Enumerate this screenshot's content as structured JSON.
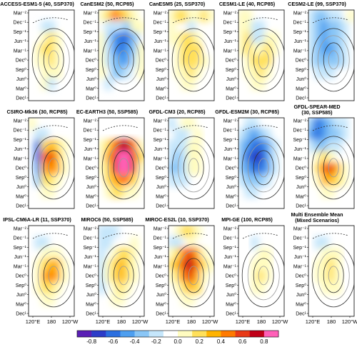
{
  "figure": {
    "panels": [
      {
        "title": "ACCESS-ESM1-5 (40, SSP370)",
        "pattern": [
          [
            0,
            0,
            0,
            0,
            0,
            0,
            0
          ],
          [
            0,
            0,
            -1,
            -1,
            0,
            0,
            0
          ],
          [
            0,
            0,
            1,
            2,
            1,
            0,
            0
          ],
          [
            0,
            1,
            2,
            2,
            1,
            0,
            0
          ],
          [
            0,
            1,
            1,
            2,
            1,
            0,
            0
          ],
          [
            0,
            0,
            1,
            1,
            1,
            0,
            0
          ],
          [
            0,
            0,
            1,
            -1,
            0,
            0,
            0
          ],
          [
            0,
            0,
            0,
            0,
            0,
            0,
            0
          ]
        ]
      },
      {
        "title": "CanESM2 (50, RCP85)",
        "pattern": [
          [
            1,
            2,
            4,
            3,
            2,
            1,
            0
          ],
          [
            0,
            -1,
            -1,
            -1,
            -2,
            1,
            1
          ],
          [
            1,
            -1,
            -3,
            -4,
            -4,
            -2,
            0
          ],
          [
            1,
            -1,
            -3,
            -4,
            -3,
            -2,
            1
          ],
          [
            1,
            -1,
            -2,
            -3,
            -3,
            -1,
            1
          ],
          [
            1,
            0,
            -2,
            -2,
            -1,
            0,
            1
          ],
          [
            0,
            -1,
            0,
            0,
            0,
            0,
            0
          ],
          [
            0,
            0,
            0,
            0,
            0,
            0,
            0
          ]
        ]
      },
      {
        "title": "CanESM5 (25, SSP370)",
        "pattern": [
          [
            1,
            2,
            2,
            1,
            1,
            2,
            1
          ],
          [
            1,
            0,
            0,
            -1,
            0,
            0,
            0
          ],
          [
            1,
            1,
            2,
            2,
            1,
            0,
            0
          ],
          [
            0,
            1,
            2,
            2,
            2,
            0,
            0
          ],
          [
            0,
            1,
            2,
            2,
            2,
            1,
            0
          ],
          [
            0,
            1,
            1,
            2,
            1,
            0,
            0
          ],
          [
            0,
            0,
            1,
            1,
            0,
            0,
            0
          ],
          [
            0,
            0,
            0,
            0,
            0,
            0,
            0
          ]
        ]
      },
      {
        "title": "CESM1-LE (40, RCP85)",
        "pattern": [
          [
            1,
            1,
            0,
            0,
            0,
            0,
            0
          ],
          [
            1,
            1,
            -1,
            -1,
            0,
            0,
            0
          ],
          [
            1,
            2,
            -1,
            -1,
            1,
            1,
            0
          ],
          [
            1,
            2,
            1,
            1,
            2,
            1,
            0
          ],
          [
            0,
            1,
            2,
            2,
            2,
            0,
            0
          ],
          [
            0,
            1,
            1,
            2,
            1,
            0,
            0
          ],
          [
            0,
            0,
            1,
            1,
            0,
            0,
            0
          ],
          [
            0,
            0,
            0,
            0,
            0,
            0,
            0
          ]
        ]
      },
      {
        "title": "CESM2-LE (99, SSP370)",
        "pattern": [
          [
            -1,
            -2,
            -2,
            -1,
            -1,
            0,
            1
          ],
          [
            -1,
            -2,
            -3,
            -2,
            -2,
            -1,
            0
          ],
          [
            -1,
            -2,
            -3,
            -2,
            -2,
            -1,
            0
          ],
          [
            -1,
            -2,
            -3,
            -3,
            -2,
            -1,
            0
          ],
          [
            -1,
            -2,
            -2,
            -2,
            -2,
            -1,
            0
          ],
          [
            0,
            -1,
            -1,
            -1,
            0,
            0,
            0
          ],
          [
            0,
            0,
            0,
            0,
            0,
            0,
            0
          ],
          [
            0,
            0,
            0,
            0,
            0,
            0,
            0
          ]
        ]
      },
      {
        "title": "CSIRO-Mk36 (30, RCP85)",
        "pattern": [
          [
            1,
            0,
            0,
            0,
            0,
            0,
            0
          ],
          [
            0,
            -1,
            -1,
            0,
            0,
            0,
            0
          ],
          [
            0,
            -4,
            2,
            3,
            2,
            1,
            0
          ],
          [
            0,
            -4,
            4,
            5,
            3,
            1,
            0
          ],
          [
            0,
            -3,
            3,
            4,
            3,
            1,
            0
          ],
          [
            0,
            -2,
            2,
            2,
            1,
            0,
            0
          ],
          [
            0,
            0,
            1,
            1,
            0,
            0,
            0
          ],
          [
            0,
            0,
            0,
            0,
            0,
            0,
            0
          ]
        ]
      },
      {
        "title": "EC-EARTH3 (50, SSP585)",
        "pattern": [
          [
            0,
            0,
            0,
            0,
            0,
            0,
            0
          ],
          [
            0,
            0,
            0,
            0,
            0,
            0,
            0
          ],
          [
            1,
            2,
            4,
            6,
            6,
            4,
            1
          ],
          [
            1,
            3,
            5,
            7,
            7,
            5,
            2
          ],
          [
            1,
            2,
            5,
            7,
            7,
            5,
            1
          ],
          [
            0,
            2,
            3,
            4,
            4,
            2,
            0
          ],
          [
            0,
            1,
            2,
            2,
            1,
            1,
            0
          ],
          [
            0,
            0,
            0,
            0,
            0,
            0,
            0
          ]
        ]
      },
      {
        "title": "GFDL-CM3 (20, RCP85)",
        "pattern": [
          [
            -1,
            0,
            1,
            1,
            0,
            0,
            0
          ],
          [
            0,
            -1,
            -1,
            0,
            1,
            0,
            0
          ],
          [
            -1,
            -1,
            -1,
            1,
            1,
            0,
            0
          ],
          [
            -1,
            -2,
            -1,
            1,
            1,
            0,
            0
          ],
          [
            -2,
            -2,
            -1,
            1,
            1,
            0,
            0
          ],
          [
            -1,
            -1,
            -1,
            0,
            0,
            0,
            0
          ],
          [
            0,
            0,
            0,
            0,
            0,
            0,
            0
          ],
          [
            0,
            0,
            0,
            0,
            0,
            0,
            0
          ]
        ]
      },
      {
        "title": "GFDL-ESM2M (30, RCP85)",
        "pattern": [
          [
            0,
            -1,
            -1,
            0,
            0,
            0,
            0
          ],
          [
            -1,
            -2,
            -3,
            -2,
            -1,
            0,
            0
          ],
          [
            -2,
            -3,
            -4,
            -4,
            -3,
            -1,
            0
          ],
          [
            -2,
            -4,
            -5,
            -5,
            -3,
            -1,
            0
          ],
          [
            -2,
            -3,
            -4,
            -4,
            -3,
            -1,
            0
          ],
          [
            -1,
            -2,
            -2,
            -2,
            -1,
            0,
            0
          ],
          [
            0,
            -1,
            -1,
            0,
            0,
            0,
            0
          ],
          [
            0,
            0,
            0,
            0,
            0,
            0,
            0
          ]
        ]
      },
      {
        "title": "GFDL-SPEAR-MED",
        "subtitle": "(30, SSP585)",
        "pattern": [
          [
            -2,
            -4,
            -3,
            -2,
            -1,
            -1,
            0
          ],
          [
            -3,
            -4,
            -3,
            -2,
            -2,
            -1,
            0
          ],
          [
            -1,
            -2,
            -2,
            -1,
            -1,
            0,
            0
          ],
          [
            0,
            1,
            2,
            1,
            0,
            0,
            0
          ],
          [
            0,
            2,
            4,
            5,
            3,
            1,
            0
          ],
          [
            0,
            1,
            3,
            3,
            2,
            1,
            0
          ],
          [
            0,
            0,
            1,
            1,
            0,
            0,
            0
          ],
          [
            0,
            0,
            0,
            0,
            0,
            0,
            0
          ]
        ]
      },
      {
        "title": "IPSL-CM6A-LR (11, SSP370)",
        "pattern": [
          [
            0,
            0,
            0,
            0,
            0,
            0,
            0
          ],
          [
            0,
            -1,
            -1,
            0,
            0,
            0,
            0
          ],
          [
            0,
            0,
            1,
            1,
            1,
            0,
            0
          ],
          [
            0,
            1,
            2,
            3,
            3,
            1,
            0
          ],
          [
            0,
            1,
            3,
            4,
            3,
            1,
            0
          ],
          [
            0,
            1,
            2,
            2,
            1,
            0,
            0
          ],
          [
            0,
            0,
            1,
            1,
            0,
            0,
            0
          ],
          [
            0,
            0,
            0,
            0,
            0,
            0,
            0
          ]
        ]
      },
      {
        "title": "MIROC6 (50, SSP585)",
        "pattern": [
          [
            -1,
            -1,
            -1,
            0,
            0,
            0,
            0
          ],
          [
            -1,
            -1,
            0,
            0,
            0,
            1,
            0
          ],
          [
            -1,
            0,
            1,
            2,
            2,
            1,
            0
          ],
          [
            -1,
            1,
            2,
            3,
            2,
            1,
            0
          ],
          [
            -1,
            1,
            2,
            3,
            2,
            1,
            0
          ],
          [
            -1,
            0,
            1,
            2,
            1,
            0,
            0
          ],
          [
            0,
            0,
            1,
            1,
            0,
            0,
            0
          ],
          [
            0,
            0,
            0,
            0,
            0,
            0,
            0
          ]
        ]
      },
      {
        "title": "MIROC-ES2L (10, SSP370)",
        "pattern": [
          [
            0,
            1,
            2,
            2,
            1,
            0,
            0
          ],
          [
            -1,
            -1,
            0,
            1,
            0,
            0,
            0
          ],
          [
            1,
            2,
            4,
            5,
            3,
            1,
            0
          ],
          [
            2,
            3,
            5,
            6,
            4,
            2,
            1
          ],
          [
            1,
            2,
            4,
            5,
            3,
            1,
            0
          ],
          [
            0,
            1,
            2,
            3,
            2,
            0,
            0
          ],
          [
            0,
            0,
            1,
            1,
            0,
            0,
            0
          ],
          [
            0,
            0,
            0,
            0,
            0,
            0,
            0
          ]
        ]
      },
      {
        "title": "MPI-GE (100, RCP85)",
        "pattern": [
          [
            0,
            0,
            0,
            0,
            0,
            0,
            0
          ],
          [
            0,
            0,
            -1,
            0,
            0,
            0,
            0
          ],
          [
            0,
            0,
            0,
            1,
            1,
            0,
            0
          ],
          [
            0,
            0,
            1,
            1,
            1,
            0,
            0
          ],
          [
            0,
            0,
            1,
            2,
            1,
            0,
            0
          ],
          [
            0,
            0,
            1,
            1,
            0,
            0,
            0
          ],
          [
            0,
            0,
            0,
            0,
            0,
            0,
            0
          ],
          [
            0,
            0,
            0,
            0,
            0,
            0,
            0
          ]
        ]
      },
      {
        "title": "Multi Ensemble Mean",
        "subtitle": "(Mixed Scenarios)",
        "pattern": [
          [
            0,
            0,
            0,
            0,
            0,
            0,
            0
          ],
          [
            0,
            -1,
            -1,
            0,
            0,
            0,
            0
          ],
          [
            0,
            0,
            1,
            1,
            1,
            0,
            0
          ],
          [
            0,
            1,
            1,
            2,
            1,
            0,
            0
          ],
          [
            0,
            1,
            1,
            2,
            1,
            0,
            0
          ],
          [
            0,
            0,
            1,
            1,
            1,
            0,
            0
          ],
          [
            0,
            0,
            0,
            0,
            0,
            0,
            0
          ],
          [
            0,
            0,
            0,
            0,
            0,
            0,
            0
          ]
        ]
      }
    ],
    "left_ticks": [
      "Mar⁻²",
      "Dec⁻¹",
      "Sep⁻¹",
      "Jun⁻¹",
      "Mar⁻¹",
      "Dec⁰",
      "Sep⁰",
      "Jun⁰",
      "Mar⁰",
      "Dec¹"
    ],
    "x_ticks": [
      "120°E",
      "180",
      "120°W"
    ],
    "colorbar": {
      "labels": [
        "-0.8",
        "-0.6",
        "-0.4",
        "-0.2",
        "0.0",
        "0.2",
        "0.4",
        "0.6",
        "0.8"
      ],
      "colors": [
        "#5a1fb5",
        "#2c3cc8",
        "#2b6fe0",
        "#4e9ff0",
        "#8ac6f6",
        "#c5e6fb",
        "#ffffff",
        "#fffcc0",
        "#ffe05a",
        "#ffb300",
        "#ff7a00",
        "#e83a17",
        "#c00018",
        "#ff60b8"
      ]
    }
  },
  "chart_data": {
    "type": "heatmap",
    "panel_count": 15,
    "layout": "3 rows x 5 columns of small-multiple Hovmoller-style panels",
    "x_axis_ticks": [
      "120°E",
      "180",
      "120°W"
    ],
    "y_axis_ticks": [
      "Mar⁻²",
      "Dec⁻¹",
      "Sep⁻¹",
      "Jun⁻¹",
      "Mar⁻¹",
      "Dec⁰",
      "Sep⁰",
      "Jun⁰",
      "Mar⁰",
      "Dec¹"
    ],
    "colorbar_range": [
      -0.8,
      0.8
    ],
    "colorbar_ticks": [
      -0.8,
      -0.6,
      -0.4,
      -0.2,
      0.0,
      0.2,
      0.4,
      0.6,
      0.8
    ],
    "panels": [
      "ACCESS-ESM1-5 (40, SSP370)",
      "CanESM2 (50, RCP85)",
      "CanESM5 (25, SSP370)",
      "CESM1-LE (40, RCP85)",
      "CESM2-LE (99, SSP370)",
      "CSIRO-Mk36 (30, RCP85)",
      "EC-EARTH3 (50, SSP585)",
      "GFDL-CM3 (20, RCP85)",
      "GFDL-ESM2M (30, RCP85)",
      "GFDL-SPEAR-MED (30, SSP585)",
      "IPSL-CM6A-LR (11, SSP370)",
      "MIROC6 (50, SSP585)",
      "MIROC-ES2L (10, SSP370)",
      "MPI-GE (100, RCP85)",
      "Multi Ensemble Mean (Mixed Scenarios)"
    ]
  }
}
